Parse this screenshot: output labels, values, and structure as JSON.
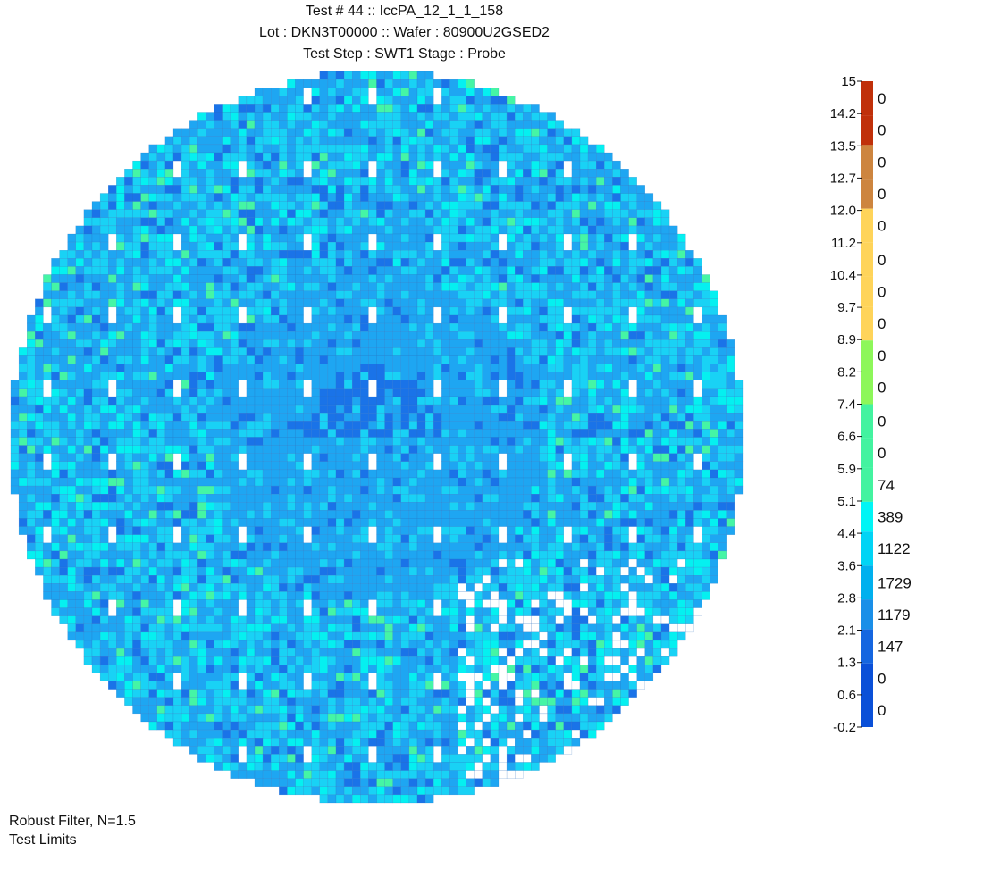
{
  "chart_data": {
    "type": "heatmap",
    "title_lines": [
      "Test #  44 :: IccPA_12_1_1_158",
      "Lot : DKN3T00000 :: Wafer : 80900U2GSED2",
      "Test Step : SWT1 Stage : Probe"
    ],
    "value_range": [
      -0.2,
      15
    ],
    "colorbar": {
      "tick_labels": [
        "15",
        "14.2",
        "13.5",
        "12.7",
        "12.0",
        "11.2",
        "10.4",
        "9.7",
        "8.9",
        "8.2",
        "7.4",
        "6.6",
        "5.9",
        "5.1",
        "4.4",
        "3.6",
        "2.8",
        "2.1",
        "1.3",
        "0.6",
        "-0.2"
      ],
      "bins": [
        {
          "from": 14.2,
          "to": 15,
          "count": "0",
          "color": "#c0300a"
        },
        {
          "from": 13.5,
          "to": 14.2,
          "count": "0",
          "color": "#c0300a"
        },
        {
          "from": 12.7,
          "to": 13.5,
          "count": "0",
          "color": "#cd853f"
        },
        {
          "from": 12.0,
          "to": 12.7,
          "count": "0",
          "color": "#cd853f"
        },
        {
          "from": 11.2,
          "to": 12.0,
          "count": "0",
          "color": "#ffd45a"
        },
        {
          "from": 10.4,
          "to": 11.2,
          "count": "0",
          "color": "#ffd45a"
        },
        {
          "from": 9.7,
          "to": 10.4,
          "count": "0",
          "color": "#ffd45a"
        },
        {
          "from": 8.9,
          "to": 9.7,
          "count": "0",
          "color": "#ffd45a"
        },
        {
          "from": 8.2,
          "to": 8.9,
          "count": "0",
          "color": "#8df75a"
        },
        {
          "from": 7.4,
          "to": 8.2,
          "count": "0",
          "color": "#8df75a"
        },
        {
          "from": 6.6,
          "to": 7.4,
          "count": "0",
          "color": "#43f3a0"
        },
        {
          "from": 5.9,
          "to": 6.6,
          "count": "0",
          "color": "#43f3a0"
        },
        {
          "from": 5.1,
          "to": 5.9,
          "count": "74",
          "color": "#43f3a0"
        },
        {
          "from": 4.4,
          "to": 5.1,
          "count": "389",
          "color": "#00f5f5"
        },
        {
          "from": 3.6,
          "to": 4.4,
          "count": "1122",
          "color": "#00d4f5"
        },
        {
          "from": 2.8,
          "to": 3.6,
          "count": "1729",
          "color": "#00b0ee"
        },
        {
          "from": 2.1,
          "to": 2.8,
          "count": "1179",
          "color": "#1a8fe8"
        },
        {
          "from": 1.3,
          "to": 2.1,
          "count": "147",
          "color": "#1566e0"
        },
        {
          "from": 0.6,
          "to": 1.3,
          "count": "0",
          "color": "#0a50d8"
        },
        {
          "from": -0.2,
          "to": 0.6,
          "count": "0",
          "color": "#0a50d8"
        }
      ]
    },
    "die_colors": {
      "dark_blue": "#1a73e8",
      "mid_blue": "#1ea6f2",
      "cyan": "#19d2f5",
      "aqua": "#05f0f0",
      "green": "#45f5a5",
      "missing": "#ffffff",
      "grid_line": "#2b6fbf"
    },
    "footnotes": [
      "Robust Filter, N=1.5",
      "Test Limits"
    ]
  }
}
